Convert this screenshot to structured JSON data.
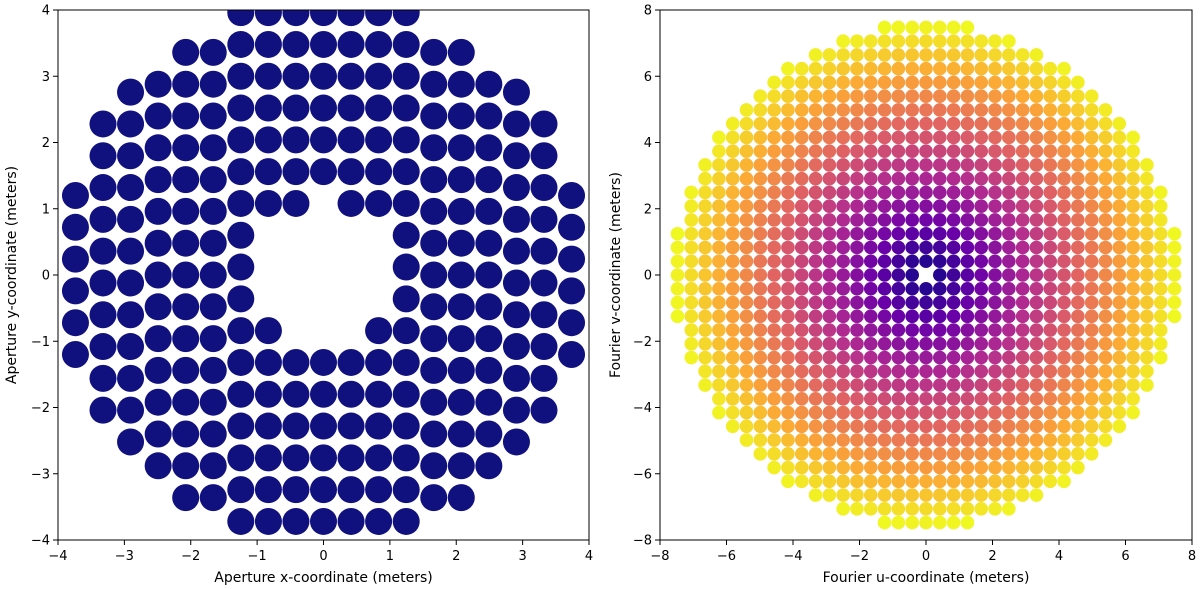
{
  "chart_data": [
    {
      "type": "scatter",
      "xlabel": "Aperture x-coordinate (meters)",
      "ylabel": "Aperture y-coordinate (meters)",
      "xlim": [
        -4,
        4
      ],
      "ylim": [
        -4,
        4
      ],
      "xticks": [
        "−4",
        "−3",
        "−2",
        "−1",
        "0",
        "1",
        "2",
        "3",
        "4"
      ],
      "yticks": [
        "−4",
        "−3",
        "−2",
        "−1",
        "0",
        "1",
        "2",
        "3",
        "4"
      ],
      "grid": false,
      "marker_color": "#10107f",
      "points": {
        "pattern": "hexagonal segmented aperture",
        "column_spacing": 0.4152,
        "columns": [
          {
            "x": -3.737,
            "y_min": -1.2,
            "y_max": 1.2,
            "step": 0.48
          },
          {
            "x": -3.322,
            "y_min": -2.04,
            "y_max": 2.04,
            "step": 0.48
          },
          {
            "x": -2.907,
            "y_min": -2.52,
            "y_max": 2.52,
            "step": 0.48
          },
          {
            "x": -2.491,
            "y_min": -2.88,
            "y_max": 2.88,
            "step": 0.48
          },
          {
            "x": -2.076,
            "y_min": -3.36,
            "y_max": 3.36,
            "step": 0.48
          },
          {
            "x": -1.661,
            "y_min": -3.36,
            "y_max": 3.36,
            "step": 0.48
          },
          {
            "x": -1.246,
            "y_min": -3.72,
            "y_max": 3.72,
            "step": 0.48
          },
          {
            "x": -0.83,
            "y_min": -3.72,
            "y_max": 3.72,
            "step": 0.48
          },
          {
            "x": -0.415,
            "y_min": -3.72,
            "y_max": 3.72,
            "step": 0.48
          },
          {
            "x": 0.0,
            "y_min": -3.72,
            "y_max": 3.72,
            "step": 0.48
          },
          {
            "x": 0.415,
            "y_min": -3.72,
            "y_max": 3.72,
            "step": 0.48
          },
          {
            "x": 0.83,
            "y_min": -3.72,
            "y_max": 3.72,
            "step": 0.48
          },
          {
            "x": 1.246,
            "y_min": -3.72,
            "y_max": 3.72,
            "step": 0.48
          },
          {
            "x": 1.661,
            "y_min": -3.36,
            "y_max": 3.36,
            "step": 0.48
          },
          {
            "x": 2.076,
            "y_min": -3.36,
            "y_max": 3.36,
            "step": 0.48
          },
          {
            "x": 2.491,
            "y_min": -2.88,
            "y_max": 2.88,
            "step": 0.48
          },
          {
            "x": 2.907,
            "y_min": -2.52,
            "y_max": 2.52,
            "step": 0.48
          },
          {
            "x": 3.322,
            "y_min": -2.04,
            "y_max": 2.04,
            "step": 0.48
          },
          {
            "x": 3.737,
            "y_min": -1.2,
            "y_max": 1.2,
            "step": 0.48
          }
        ],
        "central_hole_radius": 1.1
      }
    },
    {
      "type": "scatter",
      "xlabel": "Fourier u-coordinate (meters)",
      "ylabel": "Fourier v-coordinate (meters)",
      "xlim": [
        -8,
        8
      ],
      "ylim": [
        -8,
        8
      ],
      "xticks": [
        "−8",
        "−6",
        "−4",
        "−2",
        "0",
        "2",
        "4",
        "6",
        "8"
      ],
      "yticks": [
        "−8",
        "−6",
        "−4",
        "−2",
        "0",
        "2",
        "4",
        "6",
        "8"
      ],
      "grid": false,
      "colormap": "plasma",
      "colormap_stops": [
        "#0d0887",
        "#6a00a8",
        "#b12a90",
        "#e16462",
        "#fca636",
        "#f0f921"
      ],
      "color_encoding": "distance from origin",
      "points": {
        "pattern": "regular grid",
        "spacing": 0.4152,
        "extent": 7.6,
        "center_excluded": true
      }
    }
  ]
}
